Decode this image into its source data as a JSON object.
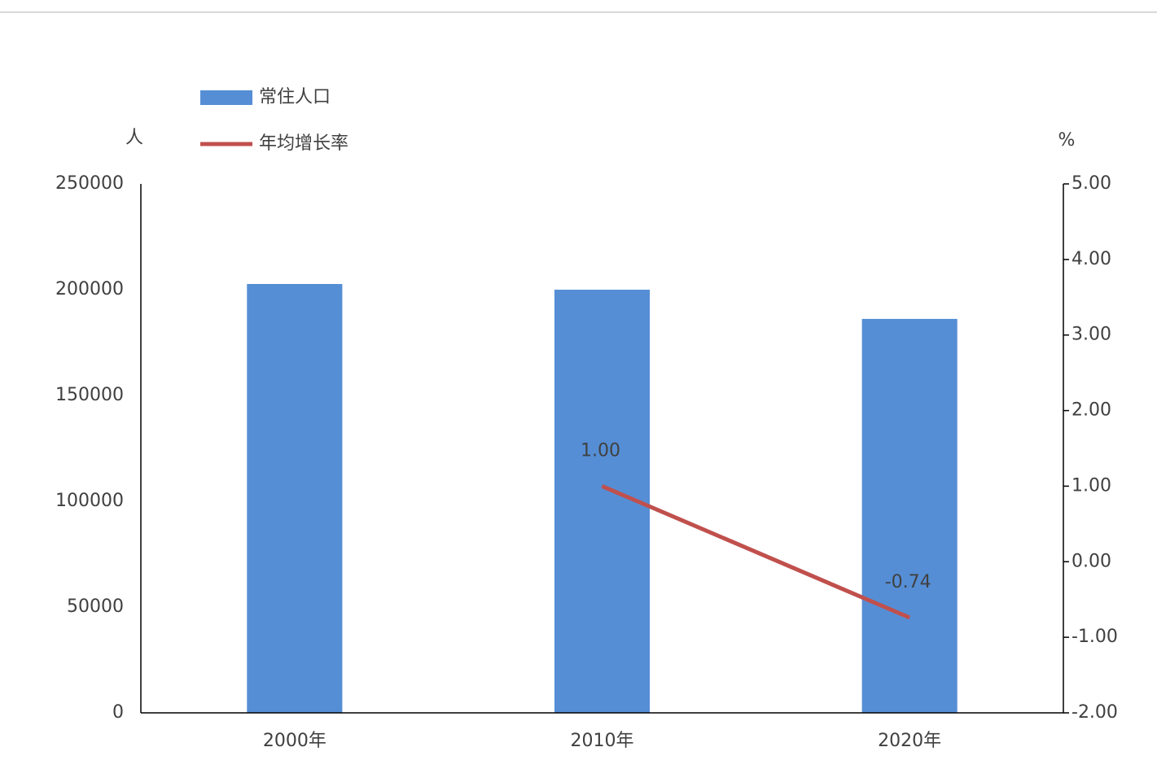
{
  "chart_data": {
    "type": "bar_line",
    "y_label": "人",
    "y2_label": "%",
    "categories": [
      "2000年",
      "2010年",
      "2020年"
    ],
    "series": [
      {
        "name": "常住人口",
        "type": "bar",
        "color": "#558ed5",
        "values": [
          202700,
          200000,
          186200
        ]
      },
      {
        "name": "年均增长率",
        "type": "line",
        "axis": "y2",
        "color": "#c0504d",
        "values": [
          null,
          1.0,
          -0.74
        ],
        "value_labels": [
          null,
          "1.00",
          "-0.74"
        ]
      }
    ],
    "ylim": [
      0,
      250000
    ],
    "yticks": [
      0,
      50000,
      100000,
      150000,
      200000,
      250000
    ],
    "y2lim": [
      -2,
      5
    ],
    "y2ticks": [
      {
        "value": -2,
        "label": "-2.00"
      },
      {
        "value": -1,
        "label": "-1.00"
      },
      {
        "value": 0,
        "label": "0.00"
      },
      {
        "value": 1,
        "label": "1.00"
      },
      {
        "value": 2,
        "label": "2.00"
      },
      {
        "value": 3,
        "label": "3.00"
      },
      {
        "value": 4,
        "label": "4.00"
      },
      {
        "value": 5,
        "label": "5.00"
      }
    ],
    "legend": "top-left"
  }
}
